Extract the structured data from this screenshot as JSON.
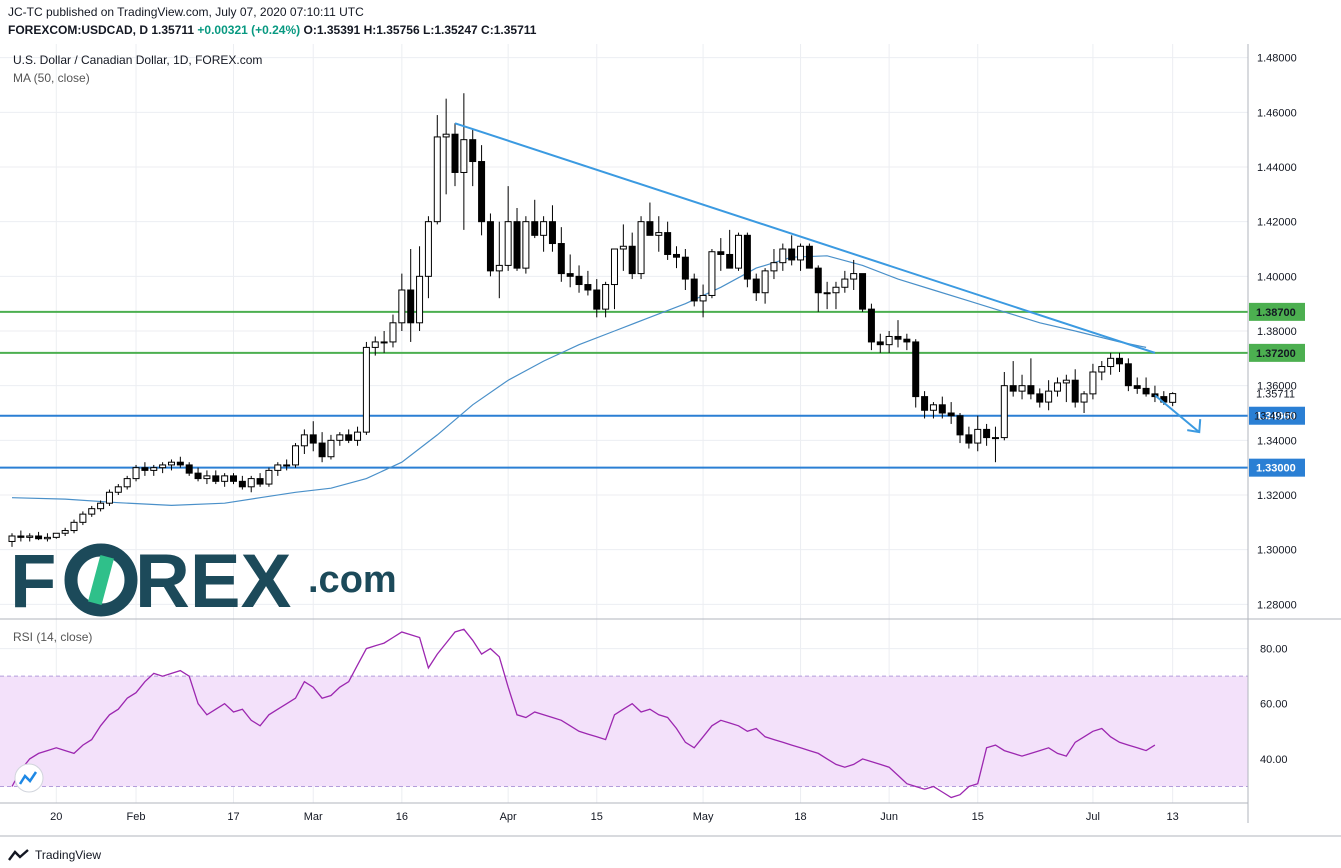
{
  "header": {
    "line1": "JC-TC published on TradingView.com, July 07, 2020 07:10:11 UTC",
    "symbol": "FOREXCOM:USDCAD, D",
    "last": "1.35711",
    "change": "+0.00321 (+0.24%)",
    "o_label": "O:",
    "o": "1.35391",
    "h_label": "H:",
    "h": "1.35756",
    "l_label": "L:",
    "l": "1.35247",
    "c_label": "C:",
    "c": "1.35711"
  },
  "legend": {
    "title": "U.S. Dollar / Canadian Dollar, 1D, FOREX.com",
    "ma": "MA (50, close)",
    "rsi": "RSI (14, close)"
  },
  "logo": {
    "brand_a": "F",
    "brand_b": "REX",
    "brand_c": ".com"
  },
  "footer": {
    "brand": "TradingView"
  },
  "colors": {
    "up": "#ffffff",
    "down": "#000000",
    "ma": "#4a90c9",
    "trend": "#3b9ae1",
    "green_level": "#4caf50",
    "blue_level": "#2a7fd4",
    "rsi": "#9c27b0",
    "rsi_band": "#f3e1fa",
    "logo": "#1c4a5a",
    "logo_accent": "#2fc08a"
  },
  "chart_data": [
    {
      "type": "candlestick",
      "title": "U.S. Dollar / Canadian Dollar, 1D, FOREX.com",
      "ylim": [
        1.275,
        1.485
      ],
      "y_ticks": [
        "1.48000",
        "1.46000",
        "1.44000",
        "1.42000",
        "1.40000",
        "1.38000",
        "1.36000",
        "1.34000",
        "1.32000",
        "1.30000",
        "1.28000"
      ],
      "x_ticks": [
        {
          "label": "20",
          "i": 5
        },
        {
          "label": "Feb",
          "i": 14
        },
        {
          "label": "17",
          "i": 25
        },
        {
          "label": "Mar",
          "i": 34
        },
        {
          "label": "16",
          "i": 44
        },
        {
          "label": "Apr",
          "i": 56
        },
        {
          "label": "15",
          "i": 66
        },
        {
          "label": "May",
          "i": 78
        },
        {
          "label": "18",
          "i": 89
        },
        {
          "label": "Jun",
          "i": 99
        },
        {
          "label": "15",
          "i": 109
        },
        {
          "label": "Jul",
          "i": 122
        },
        {
          "label": "13",
          "i": 131
        }
      ],
      "ohlc": [
        [
          1.303,
          1.306,
          1.301,
          1.305
        ],
        [
          1.305,
          1.307,
          1.303,
          1.3045
        ],
        [
          1.3045,
          1.306,
          1.303,
          1.305
        ],
        [
          1.305,
          1.3065,
          1.3035,
          1.304
        ],
        [
          1.304,
          1.306,
          1.303,
          1.3045
        ],
        [
          1.3045,
          1.306,
          1.304,
          1.306
        ],
        [
          1.306,
          1.308,
          1.305,
          1.307
        ],
        [
          1.307,
          1.311,
          1.306,
          1.31
        ],
        [
          1.31,
          1.314,
          1.309,
          1.313
        ],
        [
          1.313,
          1.316,
          1.312,
          1.315
        ],
        [
          1.315,
          1.318,
          1.314,
          1.317
        ],
        [
          1.317,
          1.322,
          1.316,
          1.321
        ],
        [
          1.321,
          1.324,
          1.32,
          1.323
        ],
        [
          1.323,
          1.327,
          1.322,
          1.326
        ],
        [
          1.326,
          1.331,
          1.325,
          1.33
        ],
        [
          1.33,
          1.332,
          1.327,
          1.329
        ],
        [
          1.329,
          1.331,
          1.327,
          1.33
        ],
        [
          1.33,
          1.332,
          1.328,
          1.331
        ],
        [
          1.331,
          1.333,
          1.329,
          1.332
        ],
        [
          1.332,
          1.334,
          1.33,
          1.331
        ],
        [
          1.331,
          1.332,
          1.327,
          1.328
        ],
        [
          1.328,
          1.33,
          1.325,
          1.326
        ],
        [
          1.326,
          1.329,
          1.324,
          1.327
        ],
        [
          1.327,
          1.329,
          1.324,
          1.325
        ],
        [
          1.325,
          1.328,
          1.323,
          1.327
        ],
        [
          1.327,
          1.328,
          1.324,
          1.325
        ],
        [
          1.325,
          1.327,
          1.322,
          1.323
        ],
        [
          1.323,
          1.327,
          1.321,
          1.326
        ],
        [
          1.326,
          1.328,
          1.323,
          1.324
        ],
        [
          1.324,
          1.33,
          1.323,
          1.329
        ],
        [
          1.329,
          1.332,
          1.327,
          1.331
        ],
        [
          1.331,
          1.333,
          1.329,
          1.331
        ],
        [
          1.331,
          1.339,
          1.33,
          1.338
        ],
        [
          1.338,
          1.344,
          1.335,
          1.342
        ],
        [
          1.342,
          1.347,
          1.336,
          1.339
        ],
        [
          1.339,
          1.343,
          1.332,
          1.334
        ],
        [
          1.334,
          1.342,
          1.333,
          1.34
        ],
        [
          1.34,
          1.343,
          1.338,
          1.342
        ],
        [
          1.342,
          1.344,
          1.339,
          1.34
        ],
        [
          1.34,
          1.345,
          1.338,
          1.343
        ],
        [
          1.343,
          1.376,
          1.342,
          1.374
        ],
        [
          1.374,
          1.378,
          1.371,
          1.376
        ],
        [
          1.376,
          1.38,
          1.372,
          1.376
        ],
        [
          1.376,
          1.386,
          1.374,
          1.383
        ],
        [
          1.383,
          1.401,
          1.38,
          1.395
        ],
        [
          1.395,
          1.41,
          1.376,
          1.383
        ],
        [
          1.383,
          1.411,
          1.38,
          1.4
        ],
        [
          1.4,
          1.422,
          1.392,
          1.42
        ],
        [
          1.42,
          1.459,
          1.419,
          1.451
        ],
        [
          1.451,
          1.465,
          1.43,
          1.452
        ],
        [
          1.452,
          1.456,
          1.433,
          1.438
        ],
        [
          1.438,
          1.467,
          1.417,
          1.45
        ],
        [
          1.45,
          1.454,
          1.433,
          1.442
        ],
        [
          1.442,
          1.448,
          1.415,
          1.42
        ],
        [
          1.42,
          1.423,
          1.4,
          1.402
        ],
        [
          1.402,
          1.42,
          1.392,
          1.404
        ],
        [
          1.404,
          1.433,
          1.402,
          1.42
        ],
        [
          1.42,
          1.425,
          1.402,
          1.403
        ],
        [
          1.403,
          1.422,
          1.401,
          1.42
        ],
        [
          1.42,
          1.428,
          1.414,
          1.415
        ],
        [
          1.415,
          1.422,
          1.409,
          1.42
        ],
        [
          1.42,
          1.426,
          1.409,
          1.412
        ],
        [
          1.412,
          1.418,
          1.398,
          1.401
        ],
        [
          1.401,
          1.408,
          1.396,
          1.4
        ],
        [
          1.4,
          1.404,
          1.394,
          1.397
        ],
        [
          1.397,
          1.402,
          1.393,
          1.395
        ],
        [
          1.395,
          1.399,
          1.385,
          1.388
        ],
        [
          1.388,
          1.398,
          1.385,
          1.397
        ],
        [
          1.397,
          1.41,
          1.388,
          1.41
        ],
        [
          1.41,
          1.419,
          1.402,
          1.411
        ],
        [
          1.411,
          1.416,
          1.399,
          1.401
        ],
        [
          1.401,
          1.422,
          1.399,
          1.42
        ],
        [
          1.42,
          1.427,
          1.415,
          1.415
        ],
        [
          1.415,
          1.422,
          1.409,
          1.416
        ],
        [
          1.416,
          1.42,
          1.406,
          1.408
        ],
        [
          1.408,
          1.411,
          1.403,
          1.407
        ],
        [
          1.407,
          1.41,
          1.395,
          1.399
        ],
        [
          1.399,
          1.401,
          1.389,
          1.391
        ],
        [
          1.391,
          1.397,
          1.385,
          1.393
        ],
        [
          1.393,
          1.41,
          1.392,
          1.409
        ],
        [
          1.409,
          1.414,
          1.402,
          1.408
        ],
        [
          1.408,
          1.417,
          1.403,
          1.403
        ],
        [
          1.403,
          1.416,
          1.402,
          1.415
        ],
        [
          1.415,
          1.416,
          1.396,
          1.399
        ],
        [
          1.399,
          1.401,
          1.391,
          1.394
        ],
        [
          1.394,
          1.403,
          1.39,
          1.402
        ],
        [
          1.402,
          1.41,
          1.399,
          1.405
        ],
        [
          1.405,
          1.412,
          1.402,
          1.41
        ],
        [
          1.41,
          1.415,
          1.404,
          1.406
        ],
        [
          1.406,
          1.412,
          1.402,
          1.411
        ],
        [
          1.411,
          1.412,
          1.403,
          1.403
        ],
        [
          1.403,
          1.404,
          1.387,
          1.394
        ],
        [
          1.394,
          1.398,
          1.388,
          1.394
        ],
        [
          1.394,
          1.398,
          1.388,
          1.396
        ],
        [
          1.396,
          1.402,
          1.394,
          1.399
        ],
        [
          1.399,
          1.406,
          1.395,
          1.401
        ],
        [
          1.401,
          1.401,
          1.387,
          1.388
        ],
        [
          1.388,
          1.39,
          1.373,
          1.376
        ],
        [
          1.376,
          1.379,
          1.372,
          1.375
        ],
        [
          1.375,
          1.38,
          1.372,
          1.378
        ],
        [
          1.378,
          1.384,
          1.374,
          1.377
        ],
        [
          1.377,
          1.379,
          1.373,
          1.376
        ],
        [
          1.376,
          1.377,
          1.352,
          1.356
        ],
        [
          1.356,
          1.358,
          1.348,
          1.351
        ],
        [
          1.351,
          1.354,
          1.348,
          1.353
        ],
        [
          1.353,
          1.356,
          1.348,
          1.35
        ],
        [
          1.35,
          1.354,
          1.346,
          1.349
        ],
        [
          1.349,
          1.35,
          1.339,
          1.342
        ],
        [
          1.342,
          1.345,
          1.337,
          1.339
        ],
        [
          1.339,
          1.349,
          1.336,
          1.344
        ],
        [
          1.344,
          1.346,
          1.338,
          1.341
        ],
        [
          1.341,
          1.345,
          1.332,
          1.341
        ],
        [
          1.341,
          1.365,
          1.34,
          1.36
        ],
        [
          1.36,
          1.369,
          1.356,
          1.358
        ],
        [
          1.358,
          1.364,
          1.355,
          1.36
        ],
        [
          1.36,
          1.37,
          1.355,
          1.357
        ],
        [
          1.357,
          1.359,
          1.352,
          1.354
        ],
        [
          1.354,
          1.362,
          1.351,
          1.358
        ],
        [
          1.358,
          1.363,
          1.356,
          1.361
        ],
        [
          1.361,
          1.364,
          1.354,
          1.362
        ],
        [
          1.362,
          1.366,
          1.352,
          1.354
        ],
        [
          1.354,
          1.358,
          1.35,
          1.357
        ],
        [
          1.357,
          1.368,
          1.355,
          1.365
        ],
        [
          1.365,
          1.369,
          1.362,
          1.367
        ],
        [
          1.367,
          1.372,
          1.364,
          1.37
        ],
        [
          1.37,
          1.372,
          1.365,
          1.368
        ],
        [
          1.368,
          1.37,
          1.358,
          1.36
        ],
        [
          1.36,
          1.363,
          1.357,
          1.359
        ],
        [
          1.359,
          1.363,
          1.356,
          1.357
        ],
        [
          1.357,
          1.36,
          1.354,
          1.356
        ],
        [
          1.356,
          1.358,
          1.353,
          1.354
        ],
        [
          1.3539,
          1.3576,
          1.3525,
          1.3571
        ]
      ],
      "ma50": [
        [
          0,
          1.319
        ],
        [
          6,
          1.3185
        ],
        [
          12,
          1.3172
        ],
        [
          18,
          1.3162
        ],
        [
          24,
          1.317
        ],
        [
          28,
          1.319
        ],
        [
          32,
          1.321
        ],
        [
          36,
          1.3225
        ],
        [
          40,
          1.326
        ],
        [
          44,
          1.332
        ],
        [
          48,
          1.342
        ],
        [
          52,
          1.353
        ],
        [
          56,
          1.362
        ],
        [
          60,
          1.369
        ],
        [
          64,
          1.375
        ],
        [
          68,
          1.38
        ],
        [
          72,
          1.385
        ],
        [
          76,
          1.39
        ],
        [
          80,
          1.396
        ],
        [
          84,
          1.403
        ],
        [
          88,
          1.407
        ],
        [
          92,
          1.4075
        ],
        [
          96,
          1.404
        ],
        [
          100,
          1.399
        ],
        [
          104,
          1.395
        ],
        [
          108,
          1.391
        ],
        [
          112,
          1.387
        ],
        [
          116,
          1.383
        ],
        [
          120,
          1.38
        ],
        [
          125,
          1.376
        ],
        [
          128,
          1.374
        ]
      ],
      "trendline": [
        [
          50,
          1.456
        ],
        [
          129,
          1.372
        ]
      ],
      "arrow": [
        [
          129,
          1.3565
        ],
        [
          134,
          1.343
        ]
      ],
      "levels": [
        {
          "label": "1.38700",
          "value": 1.387,
          "color": "green"
        },
        {
          "label": "1.37200",
          "value": 1.372,
          "color": "green"
        },
        {
          "label": "1.34900",
          "value": 1.349,
          "color": "blue"
        },
        {
          "label": "1.33000",
          "value": 1.33,
          "color": "blue"
        }
      ],
      "last_label": "1.35711",
      "countdown": "13:49:50",
      "last_value": 1.35711
    },
    {
      "type": "line",
      "title": "RSI (14, close)",
      "ylim": [
        24,
        90
      ],
      "y_ticks": [
        "80.00",
        "60.00",
        "40.00"
      ],
      "band": [
        30,
        70
      ],
      "values": [
        30,
        36,
        40,
        42,
        43,
        44,
        43,
        42,
        45,
        47,
        52,
        56,
        58,
        62,
        64,
        68,
        71,
        70,
        71,
        72,
        70,
        60,
        56,
        58,
        60,
        57,
        58,
        54,
        52,
        56,
        58,
        60,
        62,
        68,
        66,
        62,
        63,
        66,
        68,
        74,
        80,
        81,
        82,
        84,
        86,
        85,
        84,
        73,
        78,
        82,
        86,
        87,
        83,
        78,
        80,
        77,
        66,
        56,
        55,
        57,
        56,
        55,
        54,
        52,
        50,
        49,
        48,
        47,
        56,
        58,
        60,
        57,
        58,
        56,
        55,
        51,
        46,
        44,
        48,
        52,
        54,
        53,
        52,
        50,
        51,
        48,
        47,
        46,
        45,
        44,
        43,
        42,
        40,
        38,
        37,
        38,
        40,
        39,
        38,
        37,
        34,
        31,
        30,
        29,
        30,
        28,
        26,
        27,
        30,
        31,
        44,
        45,
        43,
        42,
        41,
        42,
        43,
        44,
        42,
        41,
        46,
        48,
        50,
        51,
        48,
        46,
        45,
        44,
        43,
        45
      ]
    }
  ]
}
